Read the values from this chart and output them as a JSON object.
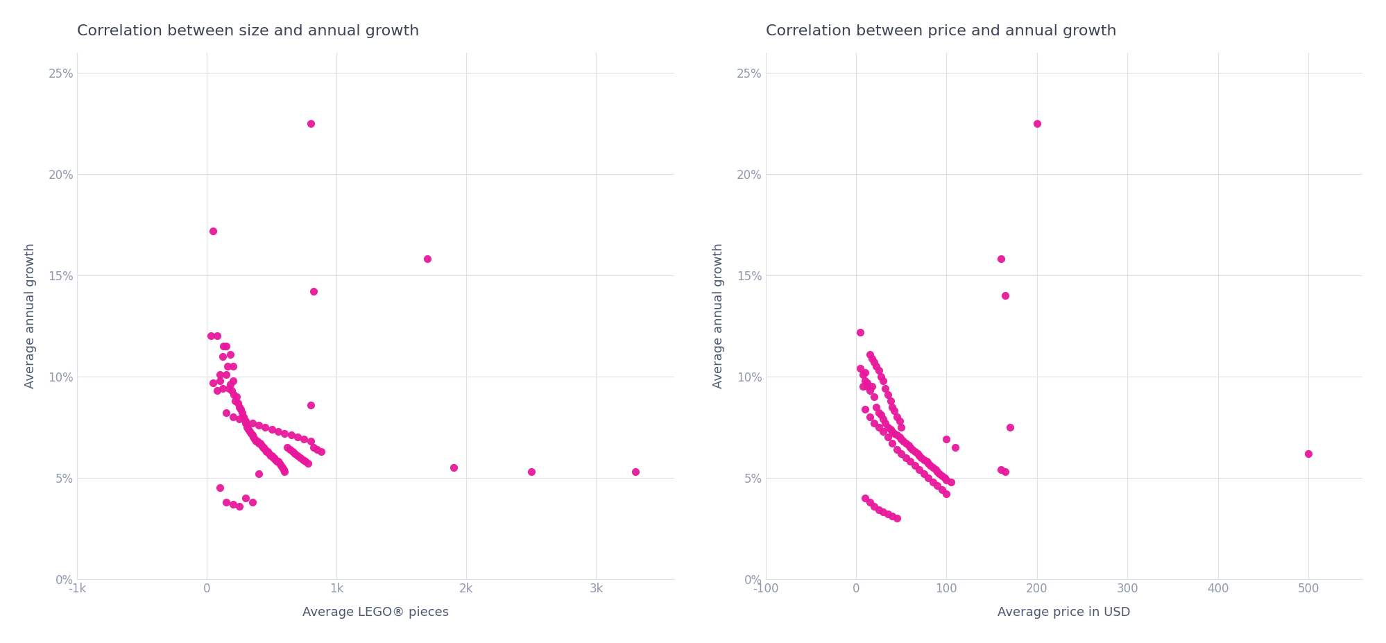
{
  "title1": "Correlation between size and annual growth",
  "title2": "Correlation between price and annual growth",
  "xlabel1": "Average LEGO® pieces",
  "xlabel2": "Average price in USD",
  "ylabel": "Average annual growth",
  "dot_color": "#e8189c",
  "background_color": "#ffffff",
  "grid_color": "#dde1ea",
  "axis_color": "#9099ae",
  "title_color": "#3d4455",
  "label_color": "#4d5870",
  "xlim1": [
    -1000,
    3600
  ],
  "xlim2": [
    -100,
    560
  ],
  "ylim": [
    0.0,
    0.26
  ],
  "xticks1": [
    -1000,
    0,
    1000,
    2000,
    3000
  ],
  "xtick_labels1": [
    "-1k",
    "0",
    "1k",
    "2k",
    "3k"
  ],
  "xticks2": [
    -100,
    0,
    100,
    200,
    300,
    400,
    500
  ],
  "xtick_labels2": [
    "-100",
    "0",
    "100",
    "200",
    "300",
    "400",
    "500"
  ],
  "yticks": [
    0.0,
    0.05,
    0.1,
    0.15,
    0.2,
    0.25
  ],
  "size_x": [
    30,
    50,
    80,
    100,
    120,
    130,
    150,
    160,
    170,
    180,
    190,
    200,
    210,
    220,
    230,
    240,
    250,
    260,
    270,
    280,
    290,
    300,
    310,
    320,
    330,
    340,
    350,
    360,
    370,
    380,
    390,
    400,
    410,
    420,
    430,
    440,
    450,
    460,
    470,
    480,
    490,
    500,
    510,
    520,
    530,
    540,
    550,
    560,
    570,
    580,
    590,
    600,
    620,
    640,
    660,
    680,
    700,
    720,
    740,
    760,
    780,
    800,
    820,
    850,
    880,
    150,
    200,
    250,
    300,
    350,
    400,
    450,
    500,
    550,
    600,
    650,
    700,
    750,
    800,
    100,
    150,
    200,
    250,
    300,
    350,
    400,
    50,
    80,
    100,
    120,
    150,
    180,
    200,
    800,
    1700,
    820,
    1900,
    2500,
    3300
  ],
  "size_y": [
    0.12,
    0.172,
    0.12,
    0.098,
    0.094,
    0.115,
    0.101,
    0.105,
    0.094,
    0.096,
    0.093,
    0.098,
    0.091,
    0.088,
    0.09,
    0.087,
    0.085,
    0.084,
    0.082,
    0.08,
    0.079,
    0.077,
    0.075,
    0.074,
    0.073,
    0.072,
    0.071,
    0.07,
    0.069,
    0.068,
    0.068,
    0.067,
    0.067,
    0.066,
    0.065,
    0.065,
    0.064,
    0.063,
    0.063,
    0.062,
    0.061,
    0.061,
    0.06,
    0.06,
    0.059,
    0.058,
    0.058,
    0.057,
    0.056,
    0.055,
    0.054,
    0.053,
    0.065,
    0.064,
    0.063,
    0.062,
    0.061,
    0.06,
    0.059,
    0.058,
    0.057,
    0.086,
    0.065,
    0.064,
    0.063,
    0.082,
    0.08,
    0.079,
    0.078,
    0.077,
    0.076,
    0.075,
    0.074,
    0.073,
    0.072,
    0.071,
    0.07,
    0.069,
    0.068,
    0.045,
    0.038,
    0.037,
    0.036,
    0.04,
    0.038,
    0.052,
    0.097,
    0.093,
    0.101,
    0.11,
    0.115,
    0.111,
    0.105,
    0.225,
    0.158,
    0.142,
    0.055,
    0.053,
    0.053
  ],
  "price_x": [
    5,
    8,
    10,
    12,
    15,
    18,
    20,
    22,
    25,
    28,
    30,
    32,
    35,
    38,
    40,
    42,
    45,
    48,
    50,
    52,
    55,
    58,
    60,
    62,
    65,
    68,
    70,
    72,
    75,
    78,
    80,
    82,
    85,
    88,
    90,
    92,
    95,
    98,
    100,
    105,
    10,
    15,
    20,
    25,
    30,
    35,
    40,
    45,
    50,
    55,
    60,
    65,
    70,
    75,
    80,
    85,
    90,
    95,
    100,
    10,
    15,
    20,
    25,
    30,
    35,
    40,
    45,
    5,
    8,
    10,
    12,
    15,
    18,
    20,
    22,
    25,
    28,
    30,
    32,
    35,
    38,
    40,
    42,
    45,
    48,
    50,
    100,
    110,
    160,
    165,
    200,
    160,
    165,
    170,
    500
  ],
  "price_y": [
    0.122,
    0.095,
    0.102,
    0.097,
    0.093,
    0.095,
    0.09,
    0.085,
    0.082,
    0.081,
    0.079,
    0.077,
    0.075,
    0.074,
    0.073,
    0.072,
    0.071,
    0.07,
    0.069,
    0.068,
    0.067,
    0.066,
    0.065,
    0.064,
    0.063,
    0.062,
    0.061,
    0.06,
    0.059,
    0.058,
    0.057,
    0.056,
    0.055,
    0.054,
    0.053,
    0.052,
    0.051,
    0.05,
    0.049,
    0.048,
    0.084,
    0.08,
    0.077,
    0.075,
    0.073,
    0.07,
    0.067,
    0.064,
    0.062,
    0.06,
    0.058,
    0.056,
    0.054,
    0.052,
    0.05,
    0.048,
    0.046,
    0.044,
    0.042,
    0.04,
    0.038,
    0.036,
    0.034,
    0.033,
    0.032,
    0.031,
    0.03,
    0.104,
    0.101,
    0.098,
    0.095,
    0.111,
    0.109,
    0.107,
    0.105,
    0.103,
    0.1,
    0.098,
    0.094,
    0.091,
    0.088,
    0.085,
    0.083,
    0.08,
    0.078,
    0.075,
    0.069,
    0.065,
    0.054,
    0.053,
    0.225,
    0.158,
    0.14,
    0.075,
    0.062
  ]
}
